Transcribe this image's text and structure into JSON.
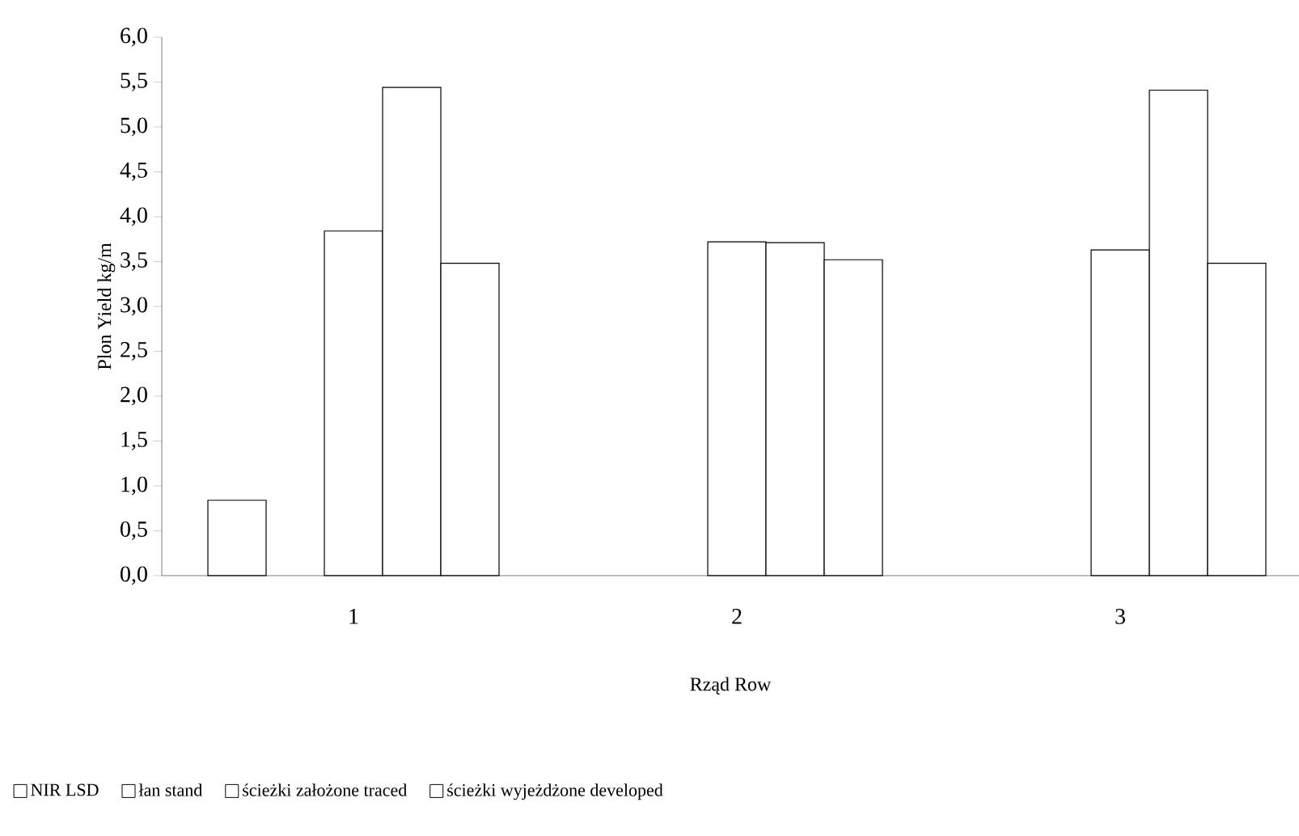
{
  "chart_data": {
    "type": "bar",
    "xlabel": "Rząd Row",
    "ylabel": "Plon Yield kg/m",
    "categories": [
      "1",
      "2",
      "3"
    ],
    "series": [
      {
        "name": "NIR LSD",
        "color": "#ffffff",
        "values": [
          0.84,
          null,
          null
        ]
      },
      {
        "name": "łan stand",
        "color": "#ffffff",
        "values": [
          3.84,
          3.72,
          3.63
        ]
      },
      {
        "name": "ścieżki założone traced",
        "color": "#ffffff",
        "values": [
          5.44,
          3.71,
          5.41
        ]
      },
      {
        "name": "ścieżki wyjeżdżone developed",
        "color": "#ffffff",
        "values": [
          3.48,
          3.52,
          3.48
        ]
      }
    ],
    "ylim": [
      0,
      6
    ],
    "yticks": [
      {
        "value": 0,
        "label": "0,0"
      },
      {
        "value": 0.5,
        "label": "0,5"
      },
      {
        "value": 1,
        "label": "1,0"
      },
      {
        "value": 1.5,
        "label": "1,5"
      },
      {
        "value": 2,
        "label": "2,0"
      },
      {
        "value": 2.5,
        "label": "2,5"
      },
      {
        "value": 3,
        "label": "3,0"
      },
      {
        "value": 3.5,
        "label": "3,5"
      },
      {
        "value": 4,
        "label": "4,0"
      },
      {
        "value": 4.5,
        "label": "4,5"
      },
      {
        "value": 5,
        "label": "5,0"
      },
      {
        "value": 5.5,
        "label": "5,5"
      },
      {
        "value": 6,
        "label": "6,0"
      }
    ],
    "grid": false,
    "legend": "bottom"
  }
}
